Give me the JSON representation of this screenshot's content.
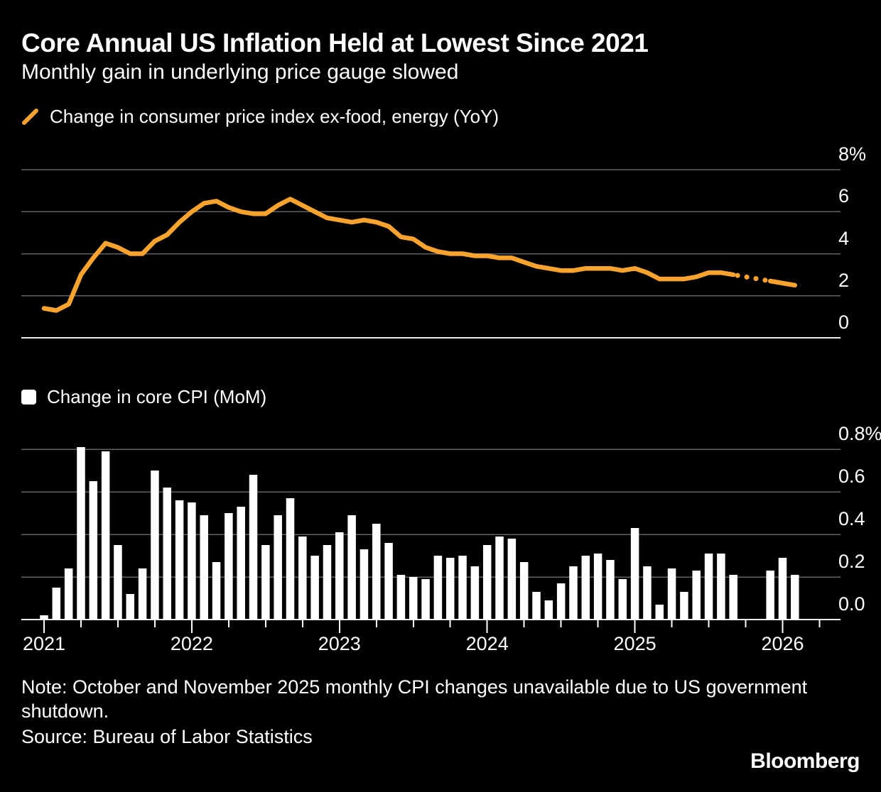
{
  "header": {
    "title": "Core Annual US Inflation Held at Lowest Since 2021",
    "subtitle": "Monthly gain in underlying price gauge slowed"
  },
  "colors": {
    "background": "#000000",
    "text": "#ffffff",
    "line_orange": "#F7A32E",
    "bar_white": "#ffffff",
    "gridline": "#606060",
    "zero_axis_line": "#EDEDED"
  },
  "chart_data": [
    {
      "type": "line",
      "legend_label": "Change in consumer price index ex-food, energy (YoY)",
      "legend_marker": "orange-slash-icon",
      "color": "#F7A32E",
      "x_start": "2021-01",
      "x_end": "2026-02",
      "x_interval": "monthly",
      "ylim": [
        0,
        8
      ],
      "ytick_labels": [
        "8%",
        "6",
        "4",
        "2",
        "0"
      ],
      "ytick_values": [
        8,
        6,
        4,
        2,
        0
      ],
      "grid": "horizontal",
      "legend_position": "top-left",
      "missing_months": [
        "2025-10",
        "2025-11"
      ],
      "missing_style": "dotted-interpolated-segment",
      "values": [
        1.4,
        1.3,
        1.6,
        3.0,
        3.8,
        4.5,
        4.3,
        4.0,
        4.0,
        4.6,
        4.9,
        5.5,
        6.0,
        6.4,
        6.5,
        6.2,
        6.0,
        5.9,
        5.9,
        6.3,
        6.6,
        6.3,
        6.0,
        5.7,
        5.6,
        5.5,
        5.6,
        5.5,
        5.3,
        4.8,
        4.7,
        4.3,
        4.1,
        4.0,
        4.0,
        3.9,
        3.9,
        3.8,
        3.8,
        3.6,
        3.4,
        3.3,
        3.2,
        3.2,
        3.3,
        3.3,
        3.3,
        3.2,
        3.3,
        3.1,
        2.8,
        2.8,
        2.8,
        2.9,
        3.1,
        3.1,
        3.0,
        null,
        null,
        2.7,
        2.6,
        2.5
      ]
    },
    {
      "type": "bar",
      "legend_label": "Change in core CPI (MoM)",
      "legend_marker": "white-square-icon",
      "color": "#ffffff",
      "x_start": "2021-01",
      "x_end": "2026-02",
      "x_interval": "monthly",
      "ylim": [
        0,
        0.8
      ],
      "ytick_labels": [
        "0.8%",
        "0.6",
        "0.4",
        "0.2",
        "0.0"
      ],
      "ytick_values": [
        0.8,
        0.6,
        0.4,
        0.2,
        0.0
      ],
      "xtick_year_labels": [
        "2021",
        "2022",
        "2023",
        "2024",
        "2025",
        "2026"
      ],
      "xtick_minor": "quarterly",
      "grid": "horizontal",
      "legend_position": "top-left",
      "missing_months": [
        "2025-10",
        "2025-11"
      ],
      "values": [
        0.02,
        0.15,
        0.24,
        0.81,
        0.65,
        0.79,
        0.35,
        0.12,
        0.24,
        0.7,
        0.62,
        0.56,
        0.55,
        0.49,
        0.27,
        0.5,
        0.53,
        0.68,
        0.35,
        0.49,
        0.57,
        0.39,
        0.3,
        0.35,
        0.41,
        0.49,
        0.33,
        0.45,
        0.36,
        0.21,
        0.2,
        0.19,
        0.3,
        0.29,
        0.3,
        0.25,
        0.35,
        0.39,
        0.38,
        0.27,
        0.13,
        0.09,
        0.17,
        0.25,
        0.3,
        0.31,
        0.28,
        0.19,
        0.43,
        0.25,
        0.07,
        0.24,
        0.13,
        0.23,
        0.31,
        0.31,
        0.21,
        null,
        null,
        0.23,
        0.29,
        0.21
      ]
    }
  ],
  "footer": {
    "note": "Note: October and November 2025 monthly CPI changes unavailable due to US government shutdown.",
    "source": "Source: Bureau of Labor Statistics",
    "brand": "Bloomberg"
  }
}
